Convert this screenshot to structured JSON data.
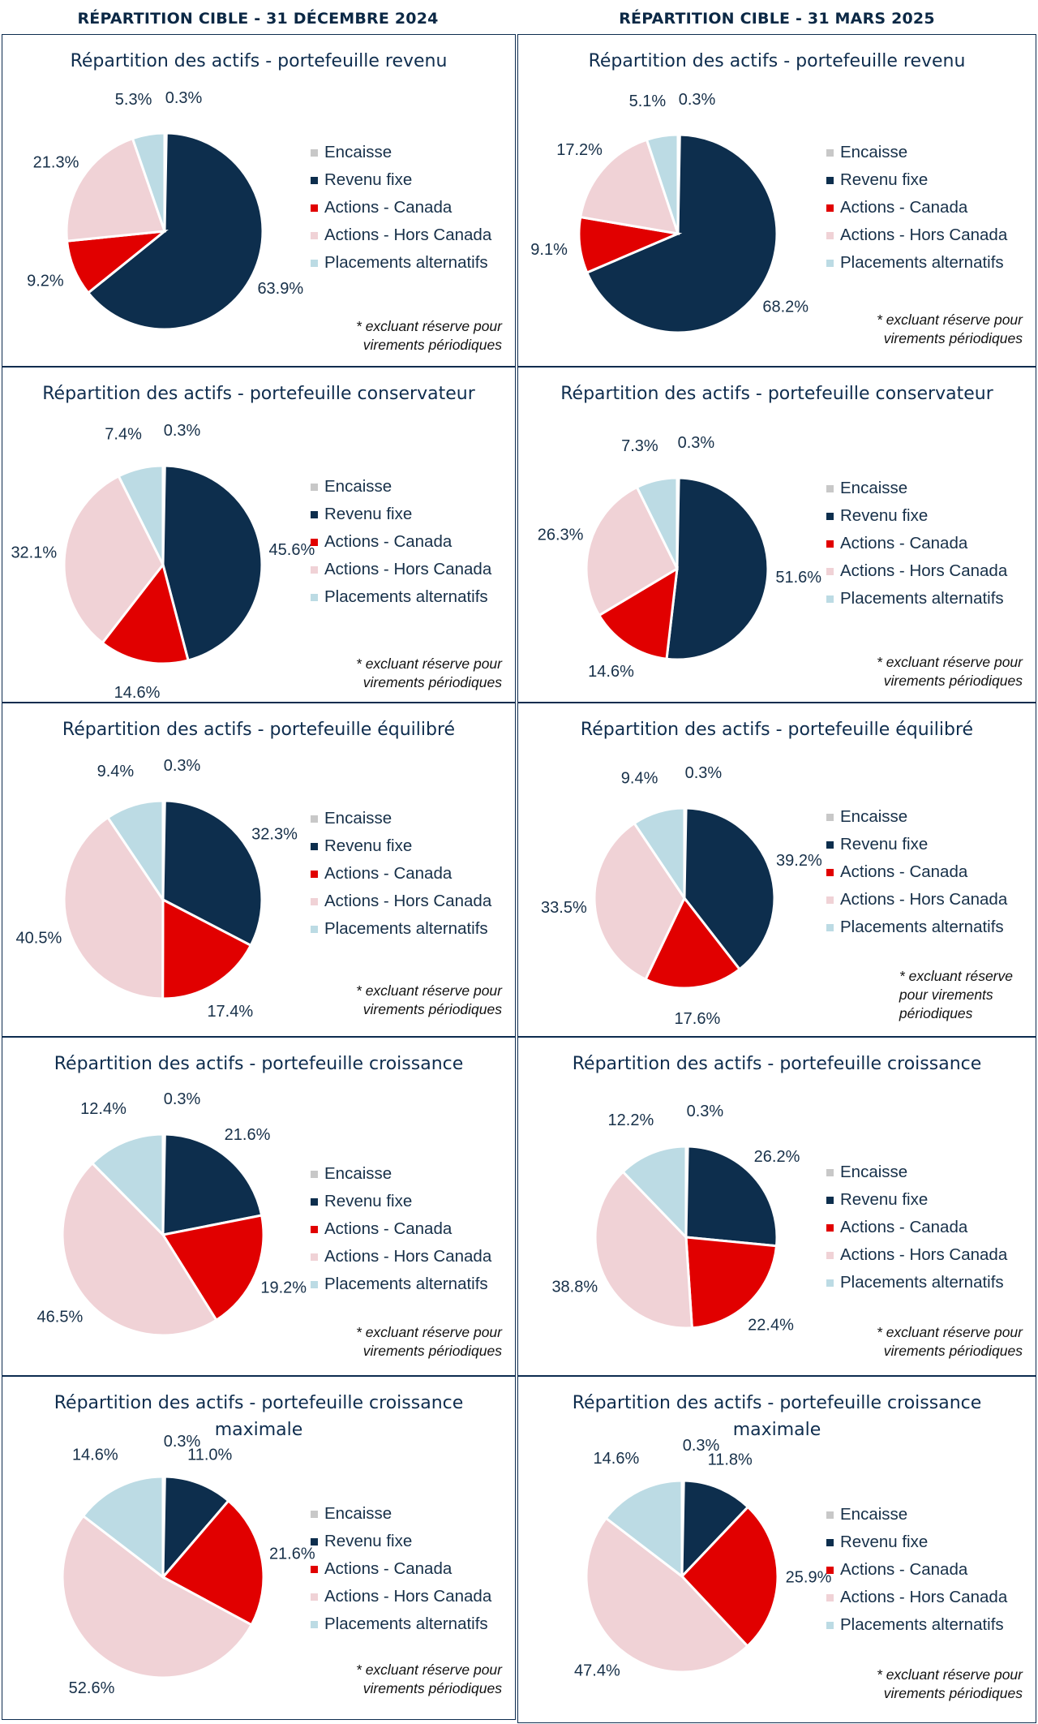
{
  "column_headers": [
    "RÉPARTITION CIBLE - 31 DÉCEMBRE 2024",
    "RÉPARTITION CIBLE - 31 MARS 2025"
  ],
  "legend": [
    {
      "label": "Encaisse",
      "color": "#c8c8c8"
    },
    {
      "label": "Revenu fixe",
      "color": "#0d2e4d"
    },
    {
      "label": "Actions - Canada",
      "color": "#e10000"
    },
    {
      "label": "Actions - Hors Canada",
      "color": "#f0d2d6"
    },
    {
      "label": "Placements alternatifs",
      "color": "#bcdbe4"
    }
  ],
  "note": {
    "line1": "* excluant réserve pour",
    "line2": "virements périodiques"
  },
  "note_wrapped": {
    "line1": "* excluant réserve",
    "line2": "pour virements",
    "line3": "périodiques"
  },
  "chart_data": [
    {
      "type": "pie",
      "title": "Répartition des actifs - portefeuille revenu",
      "categories": [
        "Encaisse",
        "Revenu fixe",
        "Actions - Canada",
        "Actions - Hors Canada",
        "Placements alternatifs"
      ],
      "values": [
        0.3,
        63.9,
        9.2,
        21.3,
        5.3
      ],
      "labels": [
        "0.3%",
        "63.9%",
        "9.2%",
        "21.3%",
        "5.3%"
      ]
    },
    {
      "type": "pie",
      "title": "Répartition des actifs - portefeuille revenu",
      "categories": [
        "Encaisse",
        "Revenu fixe",
        "Actions - Canada",
        "Actions - Hors Canada",
        "Placements alternatifs"
      ],
      "values": [
        0.3,
        68.2,
        9.1,
        17.2,
        5.1
      ],
      "labels": [
        "0.3%",
        "68.2%",
        "9.1%",
        "17.2%",
        "5.1%"
      ]
    },
    {
      "type": "pie",
      "title": "Répartition des actifs - portefeuille conservateur",
      "categories": [
        "Encaisse",
        "Revenu fixe",
        "Actions - Canada",
        "Actions - Hors Canada",
        "Placements alternatifs"
      ],
      "values": [
        0.3,
        45.6,
        14.6,
        32.1,
        7.4
      ],
      "labels": [
        "0.3%",
        "45.6%",
        "14.6%",
        "32.1%",
        "7.4%"
      ]
    },
    {
      "type": "pie",
      "title": "Répartition des actifs  - portefeuille conservateur",
      "categories": [
        "Encaisse",
        "Revenu fixe",
        "Actions - Canada",
        "Actions - Hors Canada",
        "Placements alternatifs"
      ],
      "values": [
        0.3,
        51.6,
        14.6,
        26.3,
        7.3
      ],
      "labels": [
        "0.3%",
        "51.6%",
        "14.6%",
        "26.3%",
        "7.3%"
      ]
    },
    {
      "type": "pie",
      "title": "Répartition des actifs - portefeuille équilibré",
      "categories": [
        "Encaisse",
        "Revenu fixe",
        "Actions - Canada",
        "Actions - Hors Canada",
        "Placements alternatifs"
      ],
      "values": [
        0.3,
        32.3,
        17.4,
        40.5,
        9.4
      ],
      "labels": [
        "0.3%",
        "32.3%",
        "17.4%",
        "40.5%",
        "9.4%"
      ]
    },
    {
      "type": "pie",
      "title": "Répartition des actifs - portefeuille équilibré",
      "categories": [
        "Encaisse",
        "Revenu fixe",
        "Actions - Canada",
        "Actions - Hors Canada",
        "Placements alternatifs"
      ],
      "values": [
        0.3,
        39.2,
        17.6,
        33.5,
        9.4
      ],
      "labels": [
        "0.3%",
        "39.2%",
        "17.6%",
        "33.5%",
        "9.4%"
      ]
    },
    {
      "type": "pie",
      "title": "Répartition des actifs - portefeuille croissance",
      "categories": [
        "Encaisse",
        "Revenu fixe",
        "Actions - Canada",
        "Actions - Hors Canada",
        "Placements alternatifs"
      ],
      "values": [
        0.3,
        21.6,
        19.2,
        46.5,
        12.4
      ],
      "labels": [
        "0.3%",
        "21.6%",
        "19.2%",
        "46.5%",
        "12.4%"
      ]
    },
    {
      "type": "pie",
      "title": "Répartition des actifs - portefeuille croissance",
      "categories": [
        "Encaisse",
        "Revenu fixe",
        "Actions - Canada",
        "Actions - Hors Canada",
        "Placements alternatifs"
      ],
      "values": [
        0.3,
        26.2,
        22.4,
        38.8,
        12.2
      ],
      "labels": [
        "0.3%",
        "26.2%",
        "22.4%",
        "38.8%",
        "12.2%"
      ]
    },
    {
      "type": "pie",
      "title": "Répartition des actifs - portefeuille croissance maximale",
      "categories": [
        "Encaisse",
        "Revenu fixe",
        "Actions - Canada",
        "Actions - Hors Canada",
        "Placements alternatifs"
      ],
      "values": [
        0.3,
        11.0,
        21.6,
        52.6,
        14.6
      ],
      "labels": [
        "0.3%",
        "11.0%",
        "21.6%",
        "52.6%",
        "14.6%"
      ]
    },
    {
      "type": "pie",
      "title": "Répartition des actifs - portefeuille croissance maximale",
      "categories": [
        "Encaisse",
        "Revenu fixe",
        "Actions - Canada",
        "Actions - Hors Canada",
        "Placements alternatifs"
      ],
      "values": [
        0.3,
        11.8,
        25.9,
        47.4,
        14.6
      ],
      "labels": [
        "0.3%",
        "11.8%",
        "25.9%",
        "47.4%",
        "14.6%"
      ]
    }
  ]
}
